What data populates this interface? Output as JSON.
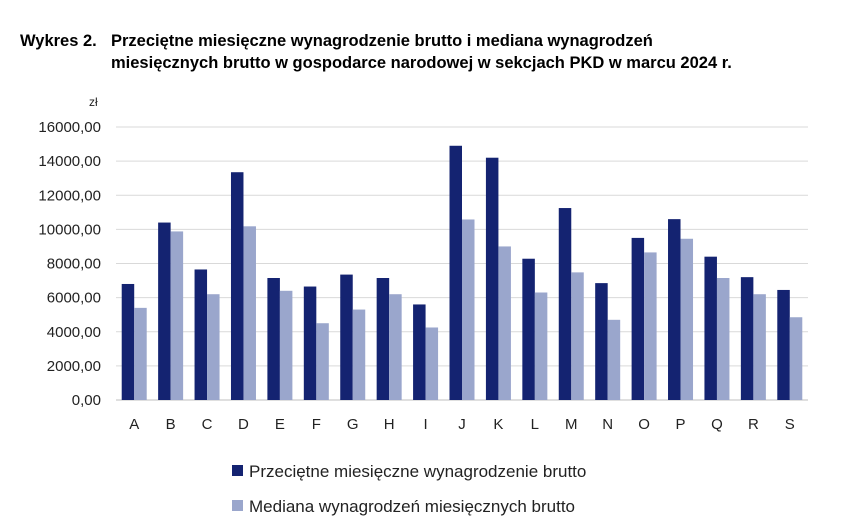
{
  "title": {
    "label": "Wykres 2.",
    "line1": "Przeciętne miesięczne wynagrodzenie brutto i mediana wynagrodzeń",
    "line2": "miesięcznych brutto w gospodarce narodowej w sekcjach PKD w marcu 2024 r."
  },
  "chart_data": {
    "type": "bar",
    "title": "Przeciętne miesięczne wynagrodzenie brutto i mediana wynagrodzeń miesięcznych brutto w gospodarce narodowej w sekcjach PKD w marcu 2024 r.",
    "ylabel": "zł",
    "xlabel": "",
    "ylim": [
      0,
      16000
    ],
    "yticks": [
      0,
      2000,
      4000,
      6000,
      8000,
      10000,
      12000,
      14000,
      16000
    ],
    "ytick_labels": [
      "0,00",
      "2000,00",
      "4000,00",
      "6000,00",
      "8000,00",
      "10000,00",
      "12000,00",
      "14000,00",
      "16000,00"
    ],
    "grid": true,
    "legend_position": "bottom",
    "categories": [
      "A",
      "B",
      "C",
      "D",
      "E",
      "F",
      "G",
      "H",
      "I",
      "J",
      "K",
      "L",
      "M",
      "N",
      "O",
      "P",
      "Q",
      "R",
      "S"
    ],
    "series": [
      {
        "name": "Przeciętne miesięczne wynagrodzenie brutto",
        "color": "#142371",
        "values": [
          6800,
          10400,
          7650,
          13350,
          7150,
          6650,
          7350,
          7150,
          5600,
          14900,
          14200,
          8280,
          11250,
          6850,
          9500,
          10600,
          8400,
          7200,
          6450
        ]
      },
      {
        "name": "Mediana wynagrodzeń miesięcznych brutto",
        "color": "#9aa6cc",
        "values": [
          5400,
          9880,
          6200,
          10180,
          6400,
          4500,
          5300,
          6200,
          4250,
          10580,
          9000,
          6300,
          7480,
          4700,
          8650,
          9450,
          7150,
          6200,
          4850
        ]
      }
    ]
  }
}
